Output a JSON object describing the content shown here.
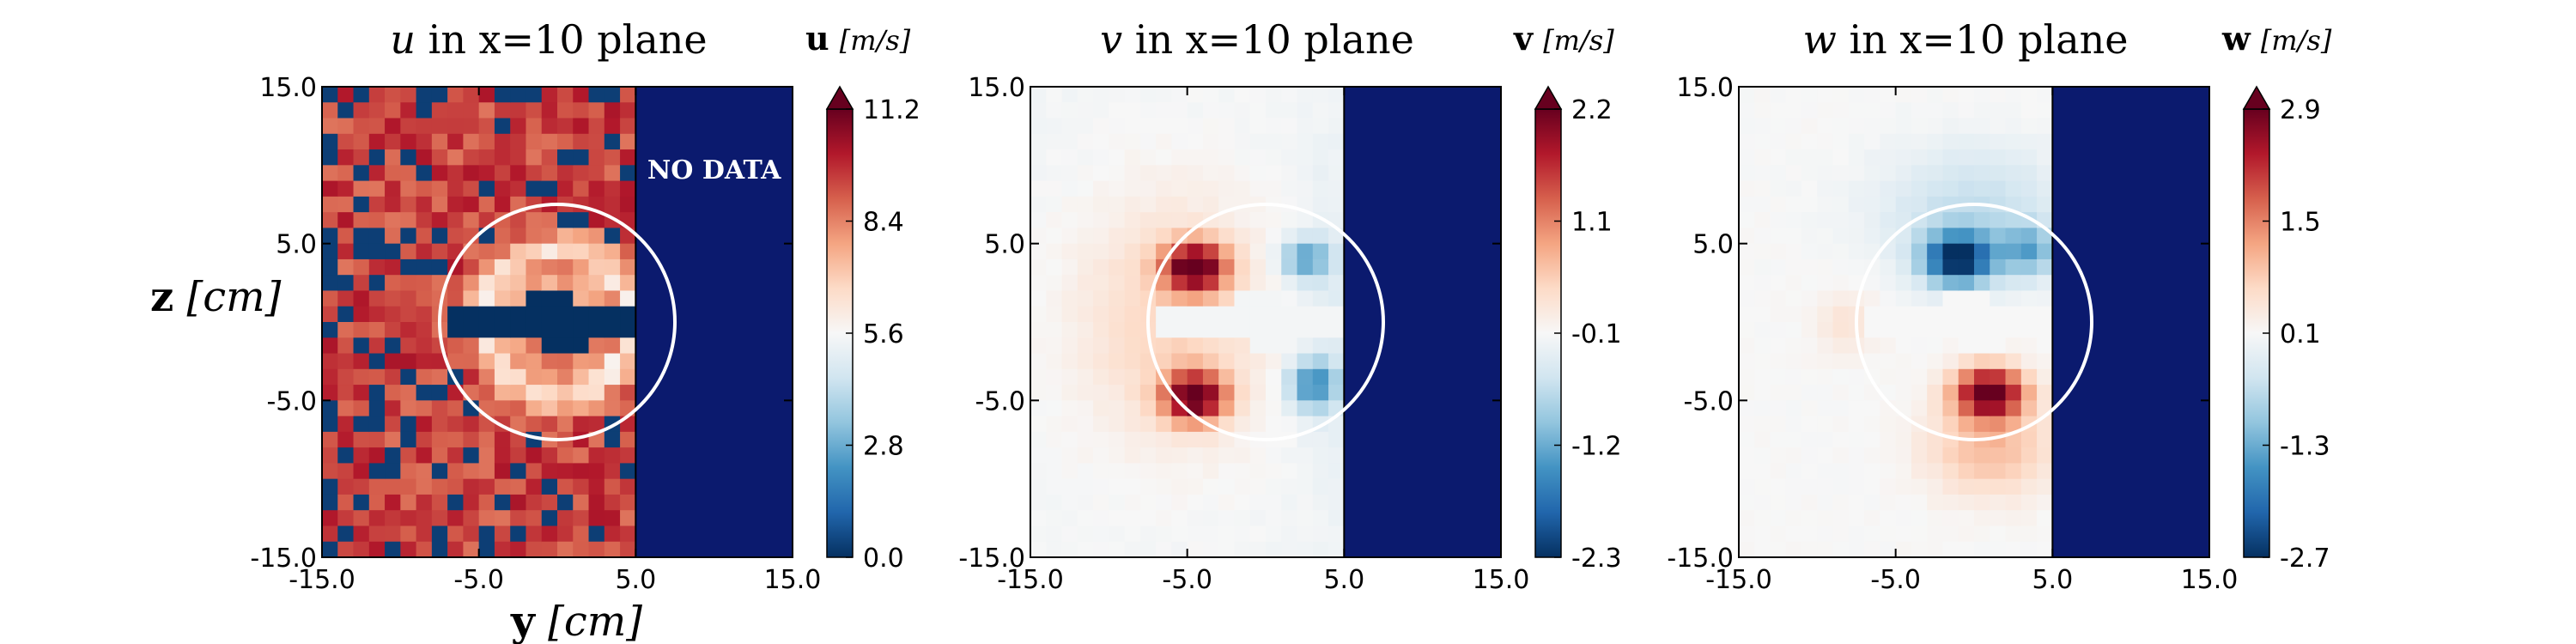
{
  "chart_data": [
    {
      "type": "heatmap",
      "panel": "u",
      "title_var": "u",
      "title_rest": "in x=10 plane",
      "colorbar_var": "u",
      "colorbar_unit": "[m/s]",
      "colorbar_ticks": [
        "11.2",
        "8.4",
        "5.6",
        "2.8",
        "0.0"
      ],
      "clim": [
        0.0,
        11.2
      ],
      "colormap": "RdBu_r",
      "xlabel_var": "y",
      "xlabel_unit": "[cm]",
      "ylabel_var": "z",
      "ylabel_unit": "[cm]",
      "x_ticks": [
        "-15.0",
        "-5.0",
        "5.0",
        "15.0"
      ],
      "y_ticks": [
        "15.0",
        "5.0",
        "-5.0",
        "-15.0"
      ],
      "xlim": [
        -15,
        15
      ],
      "ylim": [
        -15,
        15
      ],
      "measured_y_range": [
        -15,
        5
      ],
      "no_data_region": "y > 5.0",
      "no_data_label": "NO DATA",
      "circle": {
        "center_y": 0,
        "center_z": 0,
        "radius": 7.5
      },
      "field_description": "u about 8-10 m/s outside, white ring near r=5, dark core ~0 inside"
    },
    {
      "type": "heatmap",
      "panel": "v",
      "title_var": "v",
      "title_rest": "in x=10 plane",
      "colorbar_var": "v",
      "colorbar_unit": "[m/s]",
      "colorbar_ticks": [
        "2.2",
        "1.1",
        "-0.1",
        "-1.2",
        "-2.3"
      ],
      "clim": [
        -2.3,
        2.2
      ],
      "colormap": "RdBu_r",
      "x_ticks": [
        "-15.0",
        "-5.0",
        "5.0",
        "15.0"
      ],
      "y_ticks": [
        "15.0",
        "5.0",
        "-5.0",
        "-15.0"
      ],
      "xlim": [
        -15,
        15
      ],
      "ylim": [
        -15,
        15
      ],
      "no_data_region": "y > 5.0",
      "circle": {
        "center_y": 0,
        "center_z": 0,
        "radius": 7.5
      },
      "extrema": [
        {
          "y": -4,
          "z": 3.5,
          "value": 2.2
        },
        {
          "y": -4,
          "z": -4.5,
          "value": 2.2
        },
        {
          "y": 2.5,
          "z": 4,
          "value": -1.0
        },
        {
          "y": 2.5,
          "z": -4,
          "value": -1.2
        }
      ]
    },
    {
      "type": "heatmap",
      "panel": "w",
      "title_var": "w",
      "title_rest": "in x=10 plane",
      "colorbar_var": "w",
      "colorbar_unit": "[m/s]",
      "colorbar_ticks": [
        "2.9",
        "1.5",
        "0.1",
        "-1.3",
        "-2.7"
      ],
      "clim": [
        -2.7,
        2.9
      ],
      "colormap": "RdBu_r",
      "x_ticks": [
        "-15.0",
        "-5.0",
        "5.0",
        "15.0"
      ],
      "y_ticks": [
        "15.0",
        "5.0",
        "-5.0",
        "-15.0"
      ],
      "xlim": [
        -15,
        15
      ],
      "ylim": [
        -15,
        15
      ],
      "no_data_region": "y > 5.0",
      "circle": {
        "center_y": 0,
        "center_z": 0,
        "radius": 7.5
      },
      "extrema": [
        {
          "y": -1,
          "z": 4,
          "value": -2.7
        },
        {
          "y": 1,
          "z": -4.5,
          "value": 2.9
        }
      ]
    }
  ]
}
